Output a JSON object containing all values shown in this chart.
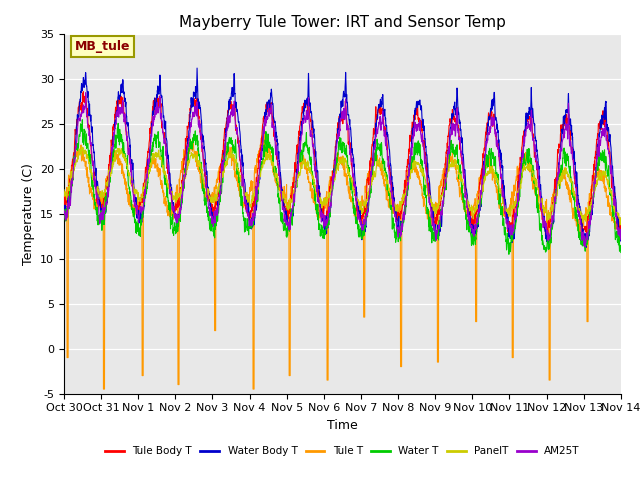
{
  "title": "Mayberry Tule Tower: IRT and Sensor Temp",
  "xlabel": "Time",
  "ylabel": "Temperature (C)",
  "ylim": [
    -5,
    35
  ],
  "xlim_start": 0,
  "xlim_end": 15,
  "x_tick_labels": [
    "Oct 30",
    "Oct 31",
    "Nov 1",
    "Nov 2",
    "Nov 3",
    "Nov 4",
    "Nov 5",
    "Nov 6",
    "Nov 7",
    "Nov 8",
    "Nov 9",
    "Nov 10",
    "Nov 11",
    "Nov 12",
    "Nov 13",
    "Nov 14"
  ],
  "legend_label": "MB_tule",
  "series_labels": [
    "Tule Body T",
    "Water Body T",
    "Tule T",
    "Water T",
    "PanelT",
    "AM25T"
  ],
  "series_colors": [
    "#ff0000",
    "#0000cc",
    "#ff9900",
    "#00cc00",
    "#cccc00",
    "#9900cc"
  ],
  "background_color": "#e8e8e8",
  "fig_background": "#ffffff",
  "title_fontsize": 11,
  "label_fontsize": 9,
  "tick_fontsize": 8,
  "n_points_per_day": 144,
  "n_days": 15,
  "seed": 7
}
